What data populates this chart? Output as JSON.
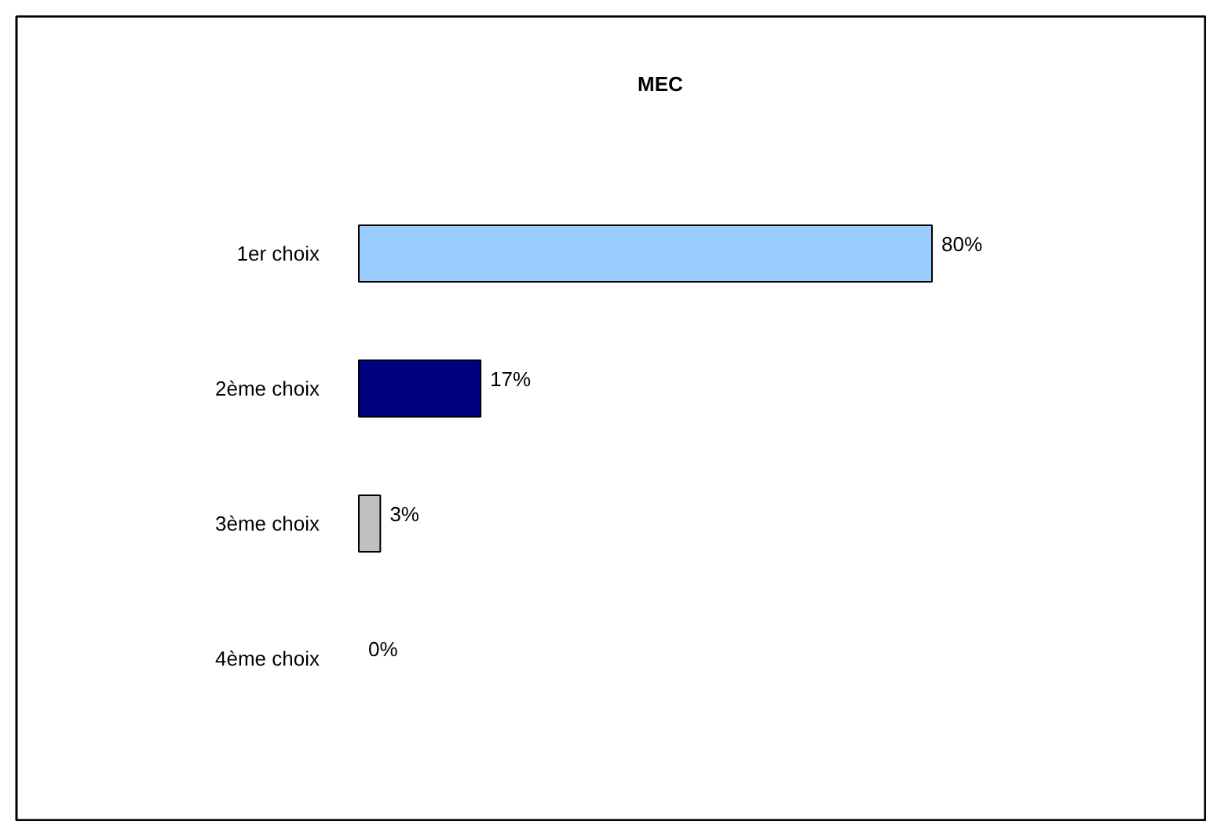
{
  "chart_data": {
    "type": "bar",
    "orientation": "horizontal",
    "title": "MEC",
    "categories": [
      "1er choix",
      "2ème choix",
      "3ème choix",
      "4ème choix"
    ],
    "values": [
      80,
      17,
      3,
      0
    ],
    "colors": [
      "#99ccff",
      "#000080",
      "#c0c0c0",
      "#ffffff"
    ],
    "value_labels": [
      "80%",
      "17%",
      "3%",
      "0%"
    ],
    "grid": false
  }
}
